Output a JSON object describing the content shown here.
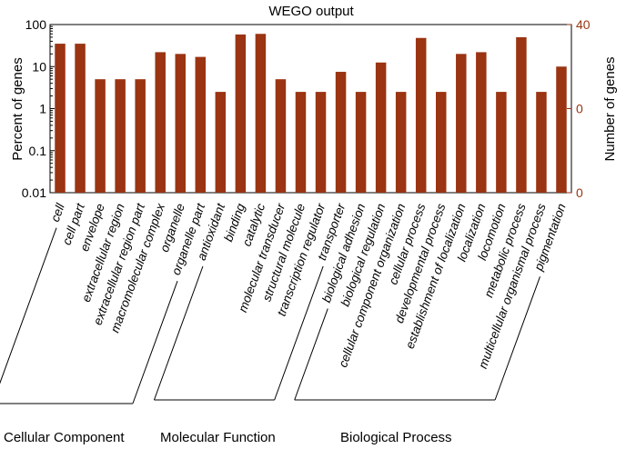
{
  "chart_data": {
    "type": "bar",
    "title": "WEGO output",
    "ylabel_left": "Percent of genes",
    "ylabel_right": "Number of genes",
    "y_scale": "log",
    "ylim": [
      0.01,
      100
    ],
    "y_ticks_left": [
      "0.01",
      "0.1",
      "1",
      "10",
      "100"
    ],
    "y_ticks_right": [
      "0",
      "0",
      "40"
    ],
    "bar_color": "#9a3412",
    "right_axis_color": "#9a3412",
    "categories": [
      "cell",
      "cell part",
      "envelope",
      "extracellular region",
      "extracellular region part",
      "macromolecular complex",
      "organelle",
      "organelle part",
      "antioxidant",
      "binding",
      "catalytic",
      "molecular transducer",
      "structural molecule",
      "transcription regulator",
      "transporter",
      "biological adhesion",
      "biological regulation",
      "cellular component organization",
      "cellular process",
      "developmental process",
      "establishment of localization",
      "localization",
      "locomotion",
      "metabolic process",
      "multicellular organismal process",
      "pigmentation"
    ],
    "values": [
      35,
      35,
      5,
      5,
      5,
      22,
      20,
      17,
      2.5,
      58,
      60,
      5,
      2.5,
      2.5,
      7.5,
      2.5,
      12.5,
      2.5,
      48,
      2.5,
      20,
      22,
      2.5,
      50,
      2.5,
      10
    ],
    "groups": [
      {
        "name": "Cellular Component",
        "start": 0,
        "end": 7
      },
      {
        "name": "Molecular Function",
        "start": 8,
        "end": 14
      },
      {
        "name": "Biological Process",
        "start": 15,
        "end": 25
      }
    ],
    "legend": "none",
    "grid": false
  }
}
